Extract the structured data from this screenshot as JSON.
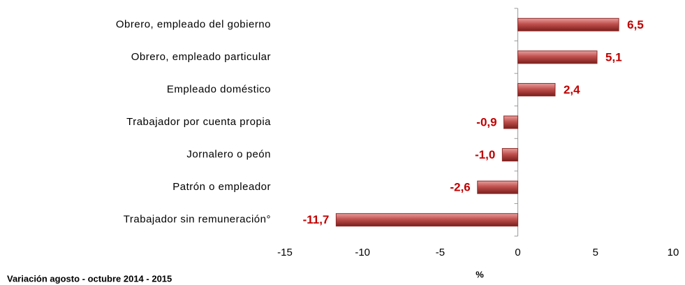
{
  "chart_data": {
    "type": "bar",
    "orientation": "horizontal",
    "categories": [
      "Obrero, empleado del gobierno",
      "Obrero, empleado particular",
      "Empleado doméstico",
      "Trabajador por cuenta propia",
      "Jornalero o peón",
      "Patrón o empleador",
      "Trabajador sin remuneración°"
    ],
    "values": [
      6.5,
      5.1,
      2.4,
      -0.9,
      -1.0,
      -2.6,
      -11.7
    ],
    "value_labels": [
      "6,5",
      "5,1",
      "2,4",
      "-0,9",
      "-1,0",
      "-2,6",
      "-11,7"
    ],
    "color": "#c0504d",
    "label_color": "#c00000",
    "xlim": [
      -15,
      10
    ],
    "xticks": [
      -15,
      -10,
      -5,
      0,
      5,
      10
    ],
    "x_label": "%",
    "footnote": "Variación agosto - octubre 2014 - 2015",
    "grid": false
  }
}
